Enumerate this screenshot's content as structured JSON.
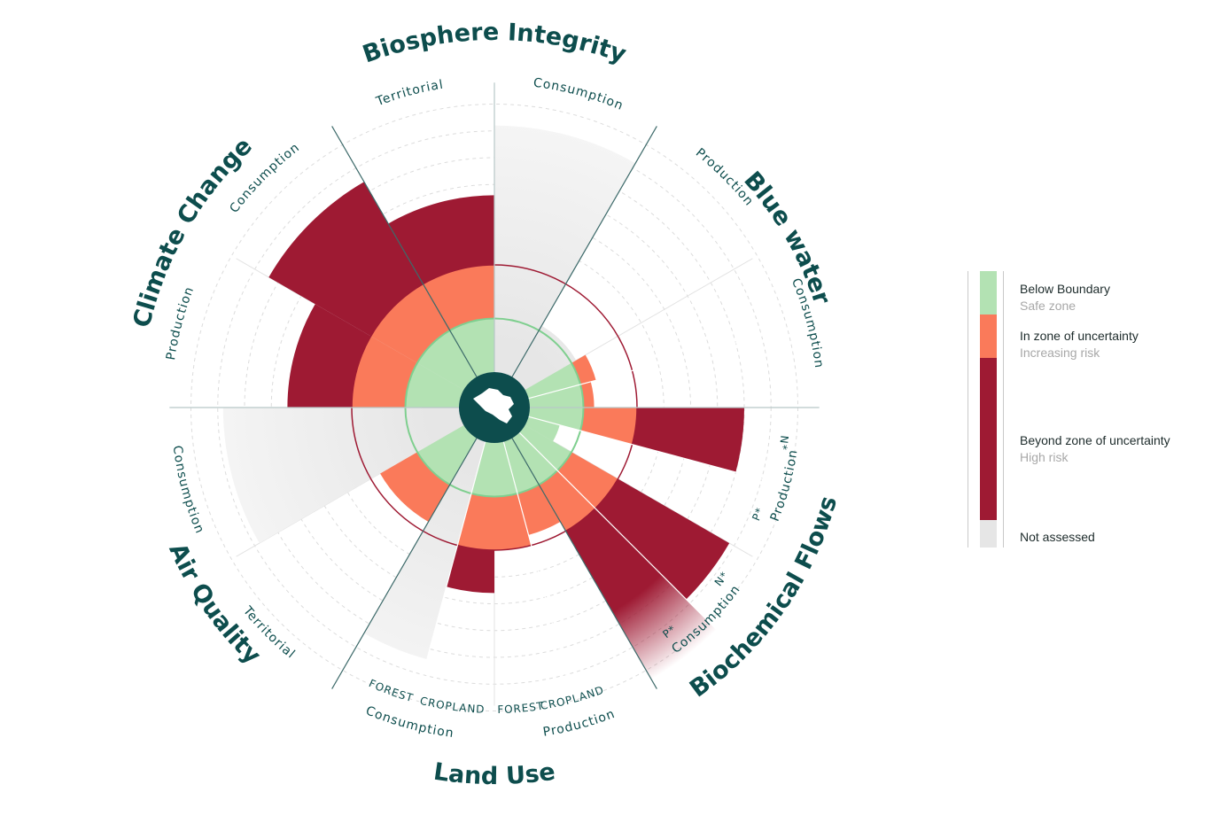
{
  "chart_data": {
    "type": "polar-bar",
    "title": "",
    "boundary_radius": 1.0,
    "safe_radius": 0.5,
    "max_radius": 2.6,
    "sectors": [
      {
        "label": "Biosphere Integrity",
        "start_deg": 0,
        "end_deg": 60,
        "subs": [
          {
            "label": "Territorial",
            "start_deg": -30,
            "end_deg": 0
          },
          {
            "label": "Consumption",
            "start_deg": 0,
            "end_deg": 30
          }
        ]
      },
      {
        "label": "Blue water",
        "start_deg": 30,
        "end_deg": 90,
        "subs": [
          {
            "label": "Production",
            "start_deg": 30,
            "end_deg": 60
          },
          {
            "label": "Consumption",
            "start_deg": 60,
            "end_deg": 90
          }
        ]
      },
      {
        "label": "Biochemical Flows",
        "start_deg": 90,
        "end_deg": 150,
        "subs": [
          {
            "label": "Production",
            "start_deg": 90,
            "end_deg": 120
          },
          {
            "label": "Consumption",
            "start_deg": 120,
            "end_deg": 150
          }
        ]
      },
      {
        "label": "Land Use",
        "start_deg": 150,
        "end_deg": 210,
        "subs": [
          {
            "label": "Production",
            "start_deg": 150,
            "end_deg": 180
          },
          {
            "label": "Consumption",
            "start_deg": 180,
            "end_deg": 210
          }
        ]
      },
      {
        "label": "Air Quality",
        "start_deg": 210,
        "end_deg": 270,
        "subs": [
          {
            "label": "Territorial",
            "start_deg": 210,
            "end_deg": 240
          },
          {
            "label": "Consumption",
            "start_deg": 240,
            "end_deg": 270
          }
        ]
      },
      {
        "label": "Climate Change",
        "start_deg": 270,
        "end_deg": 330,
        "subs": [
          {
            "label": "Production",
            "start_deg": 270,
            "end_deg": 300
          },
          {
            "label": "Consumption",
            "start_deg": 300,
            "end_deg": 330
          }
        ]
      }
    ],
    "small_labels": [
      {
        "text": "N*",
        "angle": 97
      },
      {
        "text": "P*",
        "angle": 112
      },
      {
        "text": "N*",
        "angle": 127
      },
      {
        "text": "P*",
        "angle": 142
      },
      {
        "text": "CROPLAND",
        "angle": 165
      },
      {
        "text": "FOREST",
        "angle": 175
      },
      {
        "text": "CROPLAND",
        "angle": 188
      },
      {
        "text": "FOREST",
        "angle": 200
      }
    ],
    "bars": [
      {
        "name": "Biosphere Integrity - Territorial",
        "start_deg": -30,
        "end_deg": 0,
        "value": 1.65,
        "status": "beyond"
      },
      {
        "name": "Biosphere Integrity - Consumption",
        "start_deg": 0,
        "end_deg": 30,
        "value": 2.3,
        "status": "not_assessed"
      },
      {
        "name": "Blue water - Production",
        "start_deg": 30,
        "end_deg": 60,
        "value": 0.55,
        "status": "not_assessed"
      },
      {
        "name": "Blue water - Consumption a",
        "start_deg": 60,
        "end_deg": 75,
        "value": 0.65,
        "status": "uncertainty"
      },
      {
        "name": "Blue water - Consumption b",
        "start_deg": 75,
        "end_deg": 90,
        "value": 0.6,
        "status": "uncertainty"
      },
      {
        "name": "Biochemical Flows - Production N*",
        "start_deg": 90,
        "end_deg": 105,
        "value": 2.0,
        "status": "beyond"
      },
      {
        "name": "Biochemical Flows - Production P*",
        "start_deg": 105,
        "end_deg": 120,
        "value": 0.3,
        "status": "safe"
      },
      {
        "name": "Biochemical Flows - Consumption N*",
        "start_deg": 120,
        "end_deg": 135,
        "value": 2.2,
        "status": "beyond"
      },
      {
        "name": "Biochemical Flows - Consumption P*",
        "start_deg": 135,
        "end_deg": 150,
        "value": 2.6,
        "status": "beyond"
      },
      {
        "name": "Land Use - Production Cropland",
        "start_deg": 150,
        "end_deg": 165,
        "value": 0.9,
        "status": "uncertainty"
      },
      {
        "name": "Land Use - Production Forest",
        "start_deg": 165,
        "end_deg": 180,
        "value": 1.0,
        "status": "uncertainty"
      },
      {
        "name": "Land Use - Consumption Cropland",
        "start_deg": 180,
        "end_deg": 195,
        "value": 1.4,
        "status": "beyond"
      },
      {
        "name": "Land Use - Consumption Forest",
        "start_deg": 195,
        "end_deg": 210,
        "value": 2.1,
        "status": "not_assessed"
      },
      {
        "name": "Air Quality - Territorial",
        "start_deg": 210,
        "end_deg": 240,
        "value": 0.9,
        "status": "uncertainty"
      },
      {
        "name": "Air Quality - Consumption",
        "start_deg": 240,
        "end_deg": 270,
        "value": 2.2,
        "status": "not_assessed"
      },
      {
        "name": "Climate Change - Production",
        "start_deg": 270,
        "end_deg": 300,
        "value": 1.6,
        "status": "beyond"
      },
      {
        "name": "Climate Change - Consumption",
        "start_deg": 300,
        "end_deg": 330,
        "value": 2.1,
        "status": "beyond"
      }
    ],
    "colors": {
      "safe": "#b3e2b3",
      "uncertainty": "#fa7a5a",
      "beyond": "#9e1a33",
      "not_assessed": "#e6e6e6",
      "teal": "#0d4d4d",
      "boundary_line": "#9e1a33",
      "safe_line": "#7fcf8f"
    }
  },
  "legend": {
    "items": [
      {
        "title": "Below Boundary",
        "subtitle": "Safe zone",
        "color": "#b3e2b3"
      },
      {
        "title": "In zone of uncertainty",
        "subtitle": "Increasing risk",
        "color": "#fa7a5a"
      },
      {
        "title": "Beyond zone of uncertainty",
        "subtitle": "High risk",
        "color": "#9e1a33"
      },
      {
        "title": "Not assessed",
        "subtitle": "",
        "color": "#e6e6e6"
      }
    ]
  }
}
